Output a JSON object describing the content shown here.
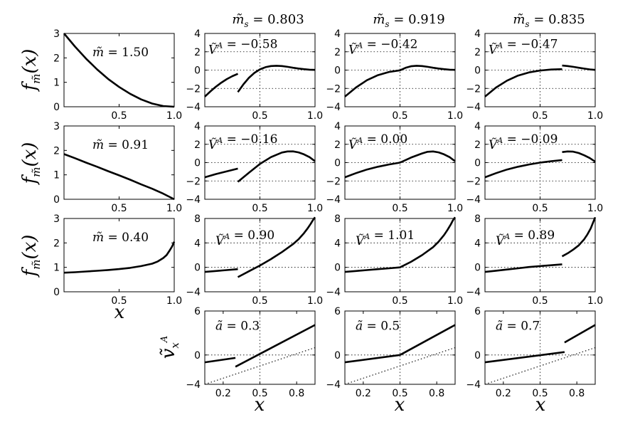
{
  "figure": {
    "column_headers": [
      "̃mₛ = 0.803",
      "̃mₛ = 0.919",
      "̃mₛ = 0.835"
    ],
    "column_header_values": [
      "0.803",
      "0.919",
      "0.835"
    ],
    "row_ylabel": "f̃m(x)",
    "bottom_ylabel": "ṽₓᴬ",
    "xlabel": "x"
  },
  "chart_data": [
    {
      "type": "line",
      "panel": "r1c1",
      "title": "̃m = 1.50",
      "annot": "1.50",
      "xlim": [
        0,
        1
      ],
      "ylim": [
        0,
        3
      ],
      "xticks": [
        "0.5",
        "1.0"
      ],
      "yticks": [
        "0",
        "1",
        "2",
        "3"
      ],
      "grid": false,
      "series": [
        {
          "style": "solid",
          "x": [
            0,
            0.1,
            0.2,
            0.3,
            0.4,
            0.5,
            0.6,
            0.7,
            0.8,
            0.9,
            1.0
          ],
          "y": [
            3.0,
            2.46,
            1.97,
            1.53,
            1.14,
            0.81,
            0.53,
            0.3,
            0.13,
            0.03,
            0.0
          ]
        }
      ]
    },
    {
      "type": "line",
      "panel": "r1c2",
      "annot": "Ṽᴬ = −0.58",
      "value": "−0.58",
      "xlim": [
        0,
        1
      ],
      "ylim": [
        -4,
        4
      ],
      "xticks": [
        "0.5",
        "1.0"
      ],
      "yticks": [
        "−4",
        "−2",
        "0",
        "2",
        "4"
      ],
      "grid": true,
      "discontinuity": 0.3,
      "series": [
        {
          "style": "solid",
          "x": [
            0,
            0.05,
            0.1,
            0.15,
            0.2,
            0.25,
            0.3
          ],
          "y": [
            -2.9,
            -2.33,
            -1.82,
            -1.37,
            -0.98,
            -0.66,
            -0.4
          ]
        },
        {
          "style": "solid",
          "x": [
            0.3,
            0.35,
            0.4,
            0.45,
            0.5,
            0.55,
            0.6,
            0.65,
            0.7,
            0.75,
            0.8,
            0.85,
            0.9,
            0.95,
            1.0
          ],
          "y": [
            -2.4,
            -1.55,
            -0.85,
            -0.3,
            0.08,
            0.32,
            0.44,
            0.47,
            0.44,
            0.36,
            0.26,
            0.17,
            0.1,
            0.05,
            0.02
          ]
        }
      ]
    },
    {
      "type": "line",
      "panel": "r1c3",
      "annot": "Ṽᴬ = −0.42",
      "value": "−0.42",
      "xlim": [
        0,
        1
      ],
      "ylim": [
        -4,
        4
      ],
      "xticks": [
        "0.5",
        "1.0"
      ],
      "yticks": [
        "−4",
        "−2",
        "0",
        "2",
        "4"
      ],
      "grid": true,
      "discontinuity": 0.5,
      "series": [
        {
          "style": "solid",
          "x": [
            0,
            0.1,
            0.2,
            0.3,
            0.4,
            0.5,
            0.55,
            0.6,
            0.65,
            0.7,
            0.75,
            0.8,
            0.85,
            0.9,
            0.95,
            1.0
          ],
          "y": [
            -2.9,
            -1.9,
            -1.1,
            -0.55,
            -0.2,
            -0.02,
            0.25,
            0.42,
            0.47,
            0.44,
            0.36,
            0.26,
            0.17,
            0.1,
            0.05,
            0.02
          ]
        }
      ]
    },
    {
      "type": "line",
      "panel": "r1c4",
      "annot": "Ṽᴬ = −0.47",
      "value": "−0.47",
      "xlim": [
        0,
        1
      ],
      "ylim": [
        -4,
        4
      ],
      "xticks": [
        "0.5",
        "1.0"
      ],
      "yticks": [
        "−4",
        "−2",
        "0",
        "2",
        "4"
      ],
      "grid": true,
      "discontinuity": 0.7,
      "series": [
        {
          "style": "solid",
          "x": [
            0,
            0.1,
            0.2,
            0.3,
            0.4,
            0.5,
            0.6,
            0.7
          ],
          "y": [
            -2.9,
            -1.9,
            -1.15,
            -0.6,
            -0.25,
            -0.05,
            0.06,
            0.1
          ]
        },
        {
          "style": "solid",
          "x": [
            0.7,
            0.75,
            0.8,
            0.85,
            0.9,
            0.95,
            1.0
          ],
          "y": [
            0.5,
            0.44,
            0.36,
            0.26,
            0.16,
            0.08,
            0.02
          ]
        }
      ]
    },
    {
      "type": "line",
      "panel": "r2c1",
      "title": "̃m = 0.91",
      "annot": "0.91",
      "xlim": [
        0,
        1
      ],
      "ylim": [
        0,
        3
      ],
      "xticks": [
        "0.5",
        "1.0"
      ],
      "yticks": [
        "0",
        "1",
        "2",
        "3"
      ],
      "grid": false,
      "series": [
        {
          "style": "solid",
          "x": [
            0,
            0.1,
            0.2,
            0.3,
            0.4,
            0.5,
            0.6,
            0.7,
            0.8,
            0.9,
            1.0
          ],
          "y": [
            1.85,
            1.68,
            1.5,
            1.33,
            1.15,
            0.98,
            0.8,
            0.61,
            0.43,
            0.23,
            0.0
          ]
        }
      ]
    },
    {
      "type": "line",
      "panel": "r2c2",
      "annot": "Ṽᴬ = −0.16",
      "value": "−0.16",
      "xlim": [
        0,
        1
      ],
      "ylim": [
        -4,
        4
      ],
      "xticks": [
        "0.5",
        "1.0"
      ],
      "yticks": [
        "−4",
        "−2",
        "0",
        "2",
        "4"
      ],
      "grid": true,
      "discontinuity": 0.3,
      "series": [
        {
          "style": "solid",
          "x": [
            0,
            0.1,
            0.2,
            0.3
          ],
          "y": [
            -1.6,
            -1.25,
            -0.95,
            -0.65
          ]
        },
        {
          "style": "solid",
          "x": [
            0.3,
            0.4,
            0.5,
            0.6,
            0.7,
            0.75,
            0.8,
            0.85,
            0.9,
            0.95,
            1.0
          ],
          "y": [
            -2.1,
            -1.1,
            -0.15,
            0.6,
            1.1,
            1.22,
            1.23,
            1.12,
            0.9,
            0.6,
            0.15
          ]
        }
      ]
    },
    {
      "type": "line",
      "panel": "r2c3",
      "annot": "Ṽᴬ = 0.00",
      "value": "0.00",
      "xlim": [
        0,
        1
      ],
      "ylim": [
        -4,
        4
      ],
      "xticks": [
        "0.5",
        "1.0"
      ],
      "yticks": [
        "−4",
        "−2",
        "0",
        "2",
        "4"
      ],
      "grid": true,
      "discontinuity": 0.5,
      "series": [
        {
          "style": "solid",
          "x": [
            0,
            0.1,
            0.2,
            0.3,
            0.4,
            0.5,
            0.6,
            0.7,
            0.75,
            0.8,
            0.85,
            0.9,
            0.95,
            1.0
          ],
          "y": [
            -1.6,
            -1.15,
            -0.75,
            -0.45,
            -0.2,
            0.0,
            0.55,
            1.0,
            1.18,
            1.22,
            1.12,
            0.9,
            0.6,
            0.15
          ]
        }
      ]
    },
    {
      "type": "line",
      "panel": "r2c4",
      "annot": "Ṽᴬ = −0.09",
      "value": "−0.09",
      "xlim": [
        0,
        1
      ],
      "ylim": [
        -4,
        4
      ],
      "xticks": [
        "0.5",
        "1.0"
      ],
      "yticks": [
        "−4",
        "−2",
        "0",
        "2",
        "4"
      ],
      "grid": true,
      "discontinuity": 0.7,
      "series": [
        {
          "style": "solid",
          "x": [
            0,
            0.1,
            0.2,
            0.3,
            0.4,
            0.5,
            0.6,
            0.7
          ],
          "y": [
            -1.6,
            -1.15,
            -0.75,
            -0.45,
            -0.2,
            0.0,
            0.15,
            0.28
          ]
        },
        {
          "style": "solid",
          "x": [
            0.7,
            0.75,
            0.8,
            0.85,
            0.9,
            0.95,
            1.0
          ],
          "y": [
            1.15,
            1.22,
            1.2,
            1.05,
            0.8,
            0.5,
            0.1
          ]
        }
      ]
    },
    {
      "type": "line",
      "panel": "r3c1",
      "title": "̃m = 0.40",
      "annot": "0.40",
      "xlim": [
        0,
        1
      ],
      "ylim": [
        0,
        3
      ],
      "xticks": [
        "0.5",
        "1.0"
      ],
      "yticks": [
        "0",
        "1",
        "2",
        "3"
      ],
      "grid": false,
      "series": [
        {
          "style": "solid",
          "x": [
            0,
            0.1,
            0.2,
            0.3,
            0.4,
            0.5,
            0.6,
            0.7,
            0.8,
            0.85,
            0.9,
            0.93,
            0.96,
            0.98,
            1.0
          ],
          "y": [
            0.78,
            0.8,
            0.83,
            0.86,
            0.89,
            0.93,
            0.98,
            1.05,
            1.15,
            1.24,
            1.38,
            1.5,
            1.7,
            1.85,
            2.05
          ]
        }
      ]
    },
    {
      "type": "line",
      "panel": "r3c2",
      "annot": "Ṽᴬ = 0.90",
      "value": "0.90",
      "xlim": [
        0,
        1
      ],
      "ylim": [
        -4,
        8
      ],
      "xticks": [
        "0.5",
        "1.0"
      ],
      "yticks": [
        "−4",
        "0",
        "4",
        "8"
      ],
      "grid": true,
      "discontinuity": 0.3,
      "series": [
        {
          "style": "solid",
          "x": [
            0,
            0.1,
            0.2,
            0.3
          ],
          "y": [
            -0.75,
            -0.6,
            -0.45,
            -0.3
          ]
        },
        {
          "style": "solid",
          "x": [
            0.3,
            0.4,
            0.5,
            0.6,
            0.7,
            0.8,
            0.85,
            0.9,
            0.93,
            0.96,
            0.98,
            1.0
          ],
          "y": [
            -1.6,
            -0.65,
            0.3,
            1.35,
            2.5,
            3.8,
            4.6,
            5.6,
            6.3,
            7.1,
            7.7,
            8.2
          ]
        }
      ]
    },
    {
      "type": "line",
      "panel": "r3c3",
      "annot": "Ṽᴬ = 1.01",
      "value": "1.01",
      "xlim": [
        0,
        1
      ],
      "ylim": [
        -4,
        8
      ],
      "xticks": [
        "0.5",
        "1.0"
      ],
      "yticks": [
        "−4",
        "0",
        "4",
        "8"
      ],
      "grid": true,
      "discontinuity": 0.5,
      "series": [
        {
          "style": "solid",
          "x": [
            0,
            0.1,
            0.2,
            0.3,
            0.4,
            0.5,
            0.6,
            0.7,
            0.8,
            0.85,
            0.9,
            0.93,
            0.96,
            0.98,
            1.0
          ],
          "y": [
            -0.75,
            -0.6,
            -0.45,
            -0.3,
            -0.15,
            0.0,
            0.9,
            2.0,
            3.3,
            4.2,
            5.3,
            6.1,
            7.0,
            7.7,
            8.2
          ]
        }
      ]
    },
    {
      "type": "line",
      "panel": "r3c4",
      "annot": "Ṽᴬ = 0.89",
      "value": "0.89",
      "xlim": [
        0,
        1
      ],
      "ylim": [
        -4,
        8
      ],
      "xticks": [
        "0.5",
        "1.0"
      ],
      "yticks": [
        "−4",
        "0",
        "4",
        "8"
      ],
      "grid": true,
      "discontinuity": 0.7,
      "series": [
        {
          "style": "solid",
          "x": [
            0,
            0.1,
            0.2,
            0.3,
            0.4,
            0.5,
            0.6,
            0.7
          ],
          "y": [
            -0.75,
            -0.55,
            -0.35,
            -0.15,
            0.05,
            0.2,
            0.35,
            0.5
          ]
        },
        {
          "style": "solid",
          "x": [
            0.7,
            0.75,
            0.8,
            0.85,
            0.9,
            0.93,
            0.96,
            0.98,
            1.0
          ],
          "y": [
            1.8,
            2.3,
            2.9,
            3.6,
            4.6,
            5.4,
            6.4,
            7.3,
            8.2
          ]
        }
      ]
    },
    {
      "type": "line",
      "panel": "r4c2",
      "annot": "ã = 0.3",
      "value": "0.3",
      "xlim": [
        0.05,
        0.95
      ],
      "ylim": [
        -4,
        6
      ],
      "xticks": [
        "0.2",
        "0.5",
        "0.8"
      ],
      "yticks": [
        "−4",
        "0",
        "6"
      ],
      "grid": true,
      "discontinuity": 0.3,
      "series": [
        {
          "style": "solid",
          "x": [
            0.05,
            0.3
          ],
          "y": [
            -1.0,
            -0.4
          ]
        },
        {
          "style": "solid",
          "x": [
            0.3,
            0.95
          ],
          "y": [
            -1.6,
            4.1
          ]
        },
        {
          "style": "dotted",
          "x": [
            0.05,
            0.95
          ],
          "y": [
            -4.0,
            1.0
          ]
        }
      ]
    },
    {
      "type": "line",
      "panel": "r4c3",
      "annot": "ã = 0.5",
      "value": "0.5",
      "xlim": [
        0.05,
        0.95
      ],
      "ylim": [
        -4,
        6
      ],
      "xticks": [
        "0.2",
        "0.5",
        "0.8"
      ],
      "yticks": [
        "−4",
        "0",
        "6"
      ],
      "grid": true,
      "discontinuity": 0.5,
      "series": [
        {
          "style": "solid",
          "x": [
            0.05,
            0.5
          ],
          "y": [
            -1.0,
            0.0
          ]
        },
        {
          "style": "solid",
          "x": [
            0.5,
            0.95
          ],
          "y": [
            0.0,
            4.1
          ]
        },
        {
          "style": "dotted",
          "x": [
            0.05,
            0.95
          ],
          "y": [
            -4.0,
            1.0
          ]
        }
      ]
    },
    {
      "type": "line",
      "panel": "r4c4",
      "annot": "ã = 0.7",
      "value": "0.7",
      "xlim": [
        0.05,
        0.95
      ],
      "ylim": [
        -4,
        6
      ],
      "xticks": [
        "0.2",
        "0.5",
        "0.8"
      ],
      "yticks": [
        "−4",
        "0",
        "6"
      ],
      "grid": true,
      "discontinuity": 0.7,
      "series": [
        {
          "style": "solid",
          "x": [
            0.05,
            0.7
          ],
          "y": [
            -1.0,
            0.4
          ]
        },
        {
          "style": "solid",
          "x": [
            0.7,
            0.95
          ],
          "y": [
            1.7,
            4.1
          ]
        },
        {
          "style": "dotted",
          "x": [
            0.05,
            0.95
          ],
          "y": [
            -4.0,
            1.0
          ]
        }
      ]
    }
  ]
}
